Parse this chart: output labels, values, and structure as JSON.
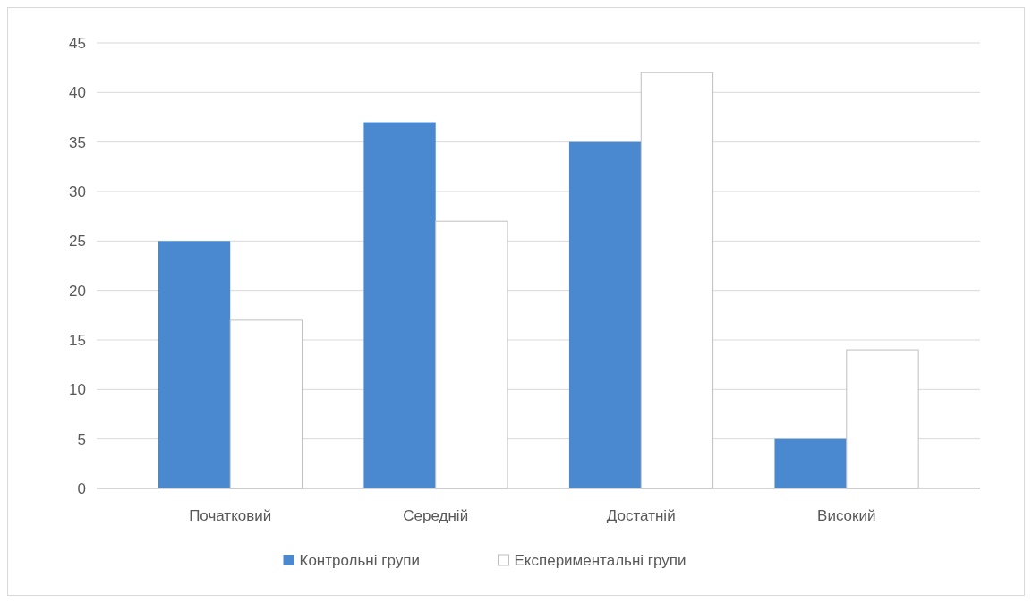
{
  "chart_data": {
    "type": "bar",
    "categories": [
      "Початковий",
      "Середній",
      "Достатній",
      "Високий"
    ],
    "series": [
      {
        "name": "Контрольні групи",
        "color": "#4a89d0",
        "values": [
          25,
          37,
          35,
          5
        ]
      },
      {
        "name": "Експериментальні групи",
        "color": "#ffffff",
        "values": [
          17,
          27,
          42,
          14
        ]
      }
    ],
    "ylim": [
      0,
      45
    ],
    "yticks": [
      0,
      5,
      10,
      15,
      20,
      25,
      30,
      35,
      40,
      45
    ],
    "grid": "y",
    "legend": "bottom"
  }
}
